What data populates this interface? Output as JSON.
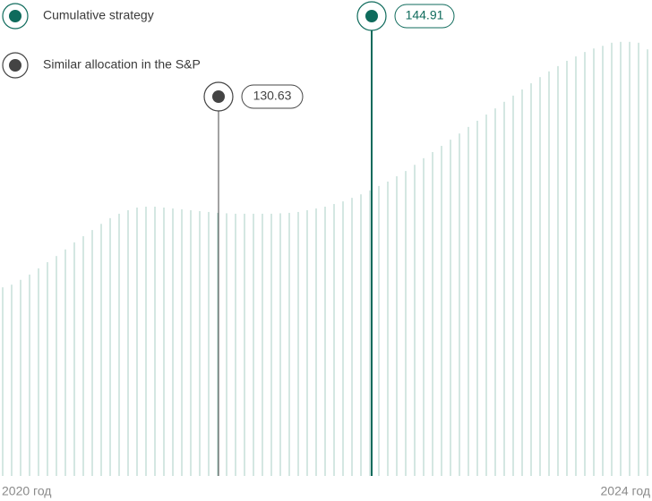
{
  "chart_data": {
    "type": "bar",
    "values": [
      122.8,
      123.4,
      124.5,
      125.7,
      127.1,
      128.5,
      129.9,
      131.4,
      133.0,
      134.4,
      135.8,
      137.2,
      138.5,
      139.5,
      140.3,
      140.9,
      141.1,
      141.1,
      140.9,
      140.7,
      140.5,
      140.3,
      140.1,
      139.9,
      139.7,
      139.6,
      139.5,
      139.5,
      139.5,
      139.5,
      139.5,
      139.6,
      139.7,
      139.9,
      140.3,
      140.7,
      141.1,
      141.7,
      142.3,
      143.1,
      143.9,
      144.8,
      145.8,
      146.8,
      148.0,
      149.2,
      150.6,
      152.1,
      153.5,
      154.9,
      156.3,
      157.7,
      159.2,
      160.6,
      162.0,
      163.4,
      164.9,
      166.3,
      167.7,
      169.1,
      170.5,
      171.8,
      173.0,
      174.2,
      175.2,
      176.2,
      177.0,
      177.6,
      178.3,
      178.5,
      178.5,
      178.3,
      176.8
    ],
    "color": "#a8cfc5",
    "ylim": [
      80,
      188
    ],
    "xlabels": [
      "2020 год",
      "2024 год"
    ],
    "legend": [
      {
        "name": "Cumulative strategy",
        "color": "#0f6b5c"
      },
      {
        "name": "Similar allocation in the S&P",
        "color": "#444444"
      }
    ],
    "annotations": [
      {
        "value": 144.91,
        "color": "#0f6b5c"
      },
      {
        "value": 130.63,
        "color": "#444444"
      }
    ]
  }
}
